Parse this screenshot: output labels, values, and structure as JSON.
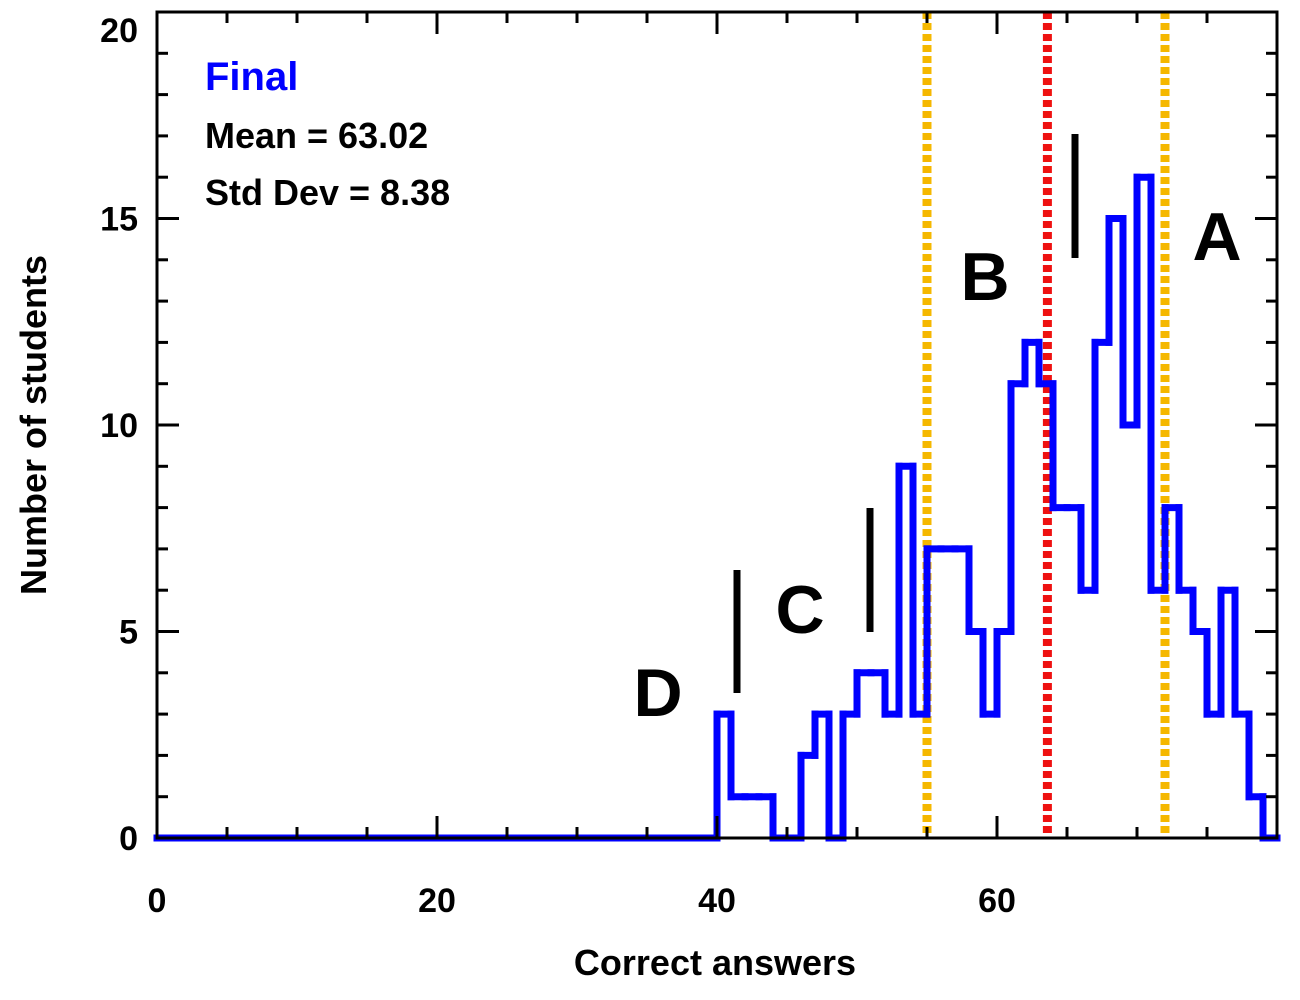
{
  "chart_data": {
    "type": "histogram",
    "title": "Final",
    "annotations": [
      "Mean = 63.02",
      "Std Dev = 8.38"
    ],
    "grade_labels": [
      "D",
      "C",
      "B",
      "A"
    ],
    "xlabel": "Correct answers",
    "ylabel": "Number of students",
    "bins": [
      0,
      1,
      2,
      3,
      4,
      5,
      6,
      7,
      8,
      9,
      10,
      11,
      12,
      13,
      14,
      15,
      16,
      17,
      18,
      19,
      20,
      21,
      22,
      23,
      24,
      25,
      26,
      27,
      28,
      29,
      30,
      31,
      32,
      33,
      34,
      35,
      36,
      37,
      38,
      39,
      40,
      41,
      42,
      43,
      44,
      45,
      46,
      47,
      48,
      49,
      50,
      51,
      52,
      53,
      54,
      55,
      56,
      57,
      58,
      59,
      60,
      61,
      62,
      63,
      64,
      65,
      66,
      67,
      68,
      69,
      70,
      71,
      72,
      73,
      74,
      75,
      76,
      77,
      78,
      79,
      80
    ],
    "counts": [
      0,
      0,
      0,
      0,
      0,
      0,
      0,
      0,
      0,
      0,
      0,
      0,
      0,
      0,
      0,
      0,
      0,
      0,
      0,
      0,
      0,
      0,
      0,
      0,
      0,
      0,
      0,
      0,
      0,
      0,
      0,
      0,
      0,
      0,
      0,
      0,
      0,
      0,
      0,
      0,
      3,
      1,
      1,
      1,
      0,
      0,
      2,
      3,
      0,
      3,
      4,
      4,
      3,
      9,
      3,
      7,
      7,
      7,
      5,
      3,
      5,
      11,
      12,
      11,
      8,
      8,
      6,
      12,
      15,
      10,
      16,
      6,
      8,
      6,
      5,
      3,
      6,
      3,
      1,
      0
    ],
    "color": "#0000ff",
    "reference_lines": [
      {
        "x": 55,
        "color": "#f5b800"
      },
      {
        "x": 63.6,
        "color": "#ee1111"
      },
      {
        "x": 72,
        "color": "#f5b800"
      }
    ],
    "xlim": [
      0,
      80
    ],
    "ylim": [
      0,
      20
    ],
    "xticks": [
      0,
      20,
      40,
      60
    ],
    "yticks": [
      0,
      5,
      10,
      15,
      20
    ],
    "xminorticks": [
      5,
      10,
      15,
      25,
      30,
      35,
      45,
      50,
      55,
      65,
      70,
      75
    ],
    "yminorticks": [
      1,
      2,
      3,
      4,
      6,
      7,
      8,
      9,
      11,
      12,
      13,
      14,
      16,
      17,
      18,
      19
    ]
  }
}
